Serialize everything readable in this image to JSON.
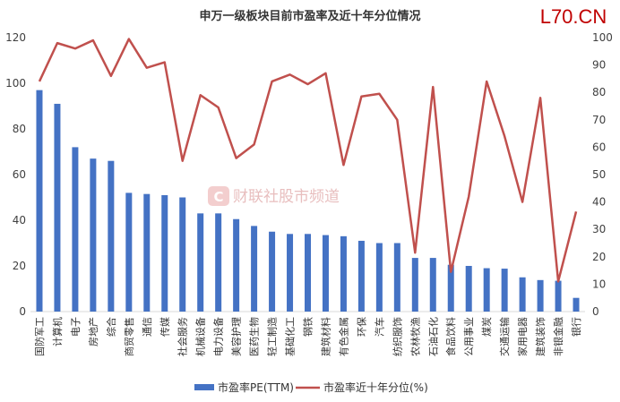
{
  "chart_data": {
    "type": "bar",
    "title": "申万一级板块目前市盈率及近十年分位情况",
    "categories": [
      "国防军工",
      "计算机",
      "电子",
      "房地产",
      "综合",
      "商贸零售",
      "通信",
      "传媒",
      "社会服务",
      "机械设备",
      "电力设备",
      "美容护理",
      "医药生物",
      "轻工制造",
      "基础化工",
      "钢铁",
      "建筑材料",
      "有色金属",
      "环保",
      "汽车",
      "纺织服饰",
      "农林牧渔",
      "石油石化",
      "食品饮料",
      "公用事业",
      "煤炭",
      "交通运输",
      "家用电器",
      "建筑装饰",
      "非银金融",
      "银行"
    ],
    "series": [
      {
        "name": "市盈率PE(TTM)",
        "axis": "left",
        "type": "bar",
        "color": "#4472c4",
        "values": [
          97,
          91,
          72,
          67,
          66,
          52,
          51.5,
          51,
          50,
          43,
          43,
          40.5,
          37.5,
          35,
          34,
          34,
          33.5,
          33,
          31,
          30,
          30,
          23.5,
          23.5,
          20.5,
          20,
          19,
          18.8,
          15,
          13.8,
          13.5,
          6
        ]
      },
      {
        "name": "市盈率近十年分位(%)",
        "axis": "right",
        "type": "line",
        "color": "#c0504d",
        "values": [
          84,
          98,
          96,
          99,
          86,
          99.5,
          89,
          91,
          55,
          79,
          74.5,
          56,
          61,
          84,
          86.5,
          83,
          87,
          53.5,
          78.5,
          79.5,
          70,
          21.5,
          82,
          14.5,
          42,
          84,
          64,
          40,
          78,
          11,
          36.5
        ]
      }
    ],
    "ylim": [
      0,
      120
    ],
    "y2lim": [
      0,
      100
    ],
    "yticks": [
      0,
      20,
      40,
      60,
      80,
      100,
      120
    ],
    "y2ticks": [
      0,
      10,
      20,
      30,
      40,
      50,
      60,
      70,
      80,
      90,
      100
    ],
    "grid": false,
    "legend_position": "bottom"
  },
  "brand": "L70.CN",
  "watermark": "财联社股市频道",
  "colors": {
    "bar": "#4472c4",
    "line": "#c0504d",
    "axis": "#d9d9d9",
    "brand": "#c00000"
  }
}
